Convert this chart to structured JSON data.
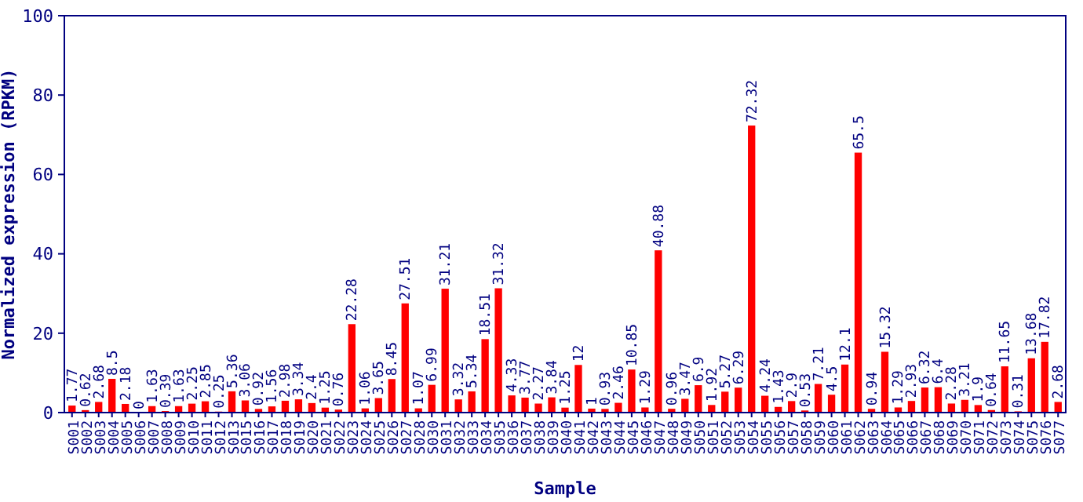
{
  "chart_data": {
    "type": "bar",
    "xlabel": "Sample",
    "ylabel": "Normalized expression (RPKM)",
    "categories": [
      "S001",
      "S002",
      "S003",
      "S004",
      "S005",
      "S006",
      "S007",
      "S008",
      "S009",
      "S010",
      "S011",
      "S012",
      "S013",
      "S015",
      "S016",
      "S017",
      "S018",
      "S019",
      "S020",
      "S021",
      "S022",
      "S023",
      "S024",
      "S025",
      "S026",
      "S027",
      "S028",
      "S030",
      "S031",
      "S032",
      "S033",
      "S034",
      "S035",
      "S036",
      "S037",
      "S038",
      "S039",
      "S040",
      "S041",
      "S042",
      "S043",
      "S044",
      "S045",
      "S046",
      "S047",
      "S048",
      "S049",
      "S050",
      "S051",
      "S052",
      "S053",
      "S054",
      "S055",
      "S056",
      "S057",
      "S058",
      "S059",
      "S060",
      "S061",
      "S062",
      "S063",
      "S064",
      "S065",
      "S066",
      "S067",
      "S068",
      "S069",
      "S070",
      "S071",
      "S072",
      "S073",
      "S074",
      "S075",
      "S076",
      "S077"
    ],
    "values": [
      1.77,
      0.62,
      2.68,
      8.5,
      2.18,
      0,
      1.63,
      0.39,
      1.63,
      2.25,
      2.85,
      0.25,
      5.36,
      3.06,
      0.92,
      1.56,
      2.98,
      3.34,
      2.4,
      1.25,
      0.76,
      22.28,
      1.06,
      3.65,
      8.45,
      27.51,
      1.07,
      6.99,
      31.21,
      3.32,
      5.34,
      18.51,
      31.32,
      4.33,
      3.77,
      2.27,
      3.84,
      1.25,
      12,
      1,
      0.93,
      2.46,
      10.85,
      1.29,
      40.88,
      0.96,
      3.47,
      6.9,
      1.92,
      5.27,
      6.29,
      72.32,
      4.24,
      1.43,
      2.9,
      0.53,
      7.21,
      4.5,
      12.1,
      65.5,
      0.94,
      15.32,
      1.29,
      2.93,
      6.32,
      6.4,
      2.28,
      3.21,
      1.9,
      0.64,
      11.65,
      0.31,
      13.68,
      17.82,
      2.68
    ],
    "color": "#ff0000",
    "ylim": [
      0,
      100
    ],
    "yticks": [
      0,
      20,
      40,
      60,
      80,
      100
    ],
    "data_labels": true,
    "grid": false
  }
}
